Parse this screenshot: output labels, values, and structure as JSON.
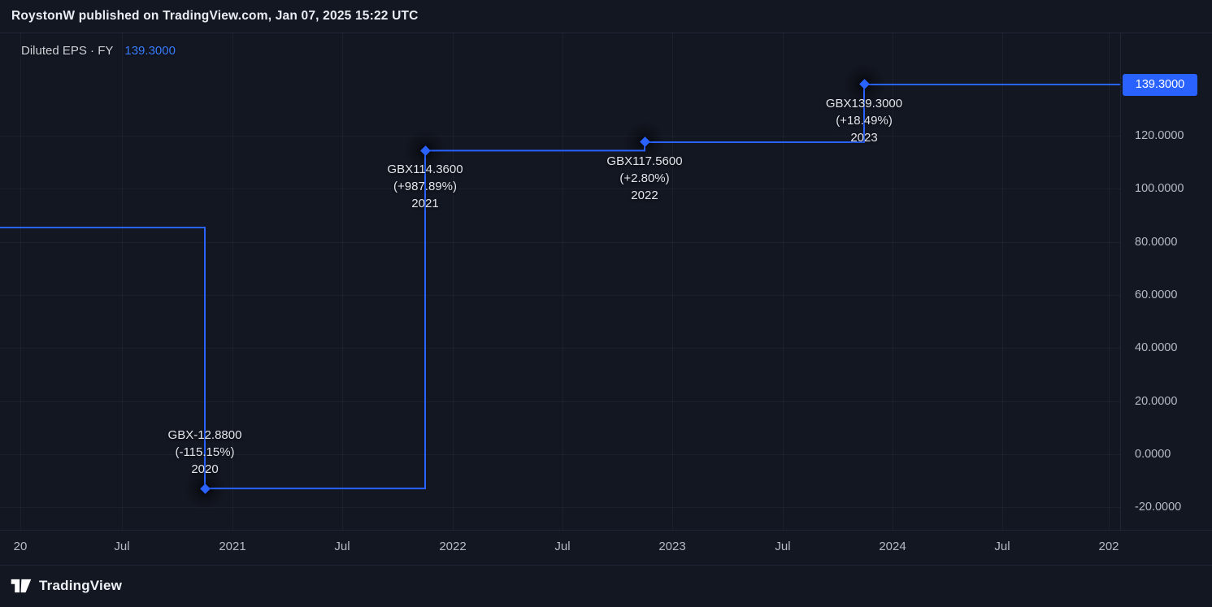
{
  "header": {
    "attribution": "RoystonW published on TradingView.com, Jan 07, 2025 15:22 UTC"
  },
  "legend": {
    "series_title": "Diluted EPS · FY",
    "value": "139.3000"
  },
  "price_label": {
    "value": "139.3000"
  },
  "footer": {
    "brand": "TradingView"
  },
  "colors": {
    "accent": "#2962ff",
    "background": "#131722",
    "axis_text": "#b5bac6",
    "label_text": "#e2e5ec"
  },
  "chart_data": {
    "type": "line",
    "line_style": "step",
    "title": "Diluted EPS · FY",
    "unit": "GBX",
    "legend_position": "top-left",
    "grid": true,
    "line_color": "#2962ff",
    "categories": [
      "2020",
      "2021",
      "2022",
      "2023"
    ],
    "values": [
      -12.88,
      114.36,
      117.56,
      139.3
    ],
    "points": [
      {
        "year": "2020",
        "value": -12.88,
        "label_value": "GBX-12.8800",
        "label_change": "(-115.15%)",
        "label_side": "above"
      },
      {
        "year": "2021",
        "value": 114.36,
        "label_value": "GBX114.3600",
        "label_change": "(+987.89%)",
        "label_side": "below"
      },
      {
        "year": "2022",
        "value": 117.56,
        "label_value": "GBX117.5600",
        "label_change": "(+2.80%)",
        "label_side": "below"
      },
      {
        "year": "2023",
        "value": 139.3,
        "label_value": "GBX139.3000",
        "label_change": "(+18.49%)",
        "label_side": "below"
      }
    ],
    "leading_value_estimate": 85.4,
    "last_value": 139.3,
    "y_axis": {
      "ticks": [
        {
          "label": "120.0000",
          "value": 120
        },
        {
          "label": "100.0000",
          "value": 100
        },
        {
          "label": "80.0000",
          "value": 80
        },
        {
          "label": "60.0000",
          "value": 60
        },
        {
          "label": "40.0000",
          "value": 40
        },
        {
          "label": "20.0000",
          "value": 20
        },
        {
          "label": "0.0000",
          "value": 0
        },
        {
          "label": "-20.0000",
          "value": -20
        }
      ],
      "range_estimate": [
        -33,
        153
      ]
    },
    "x_axis": {
      "ticks": [
        "20",
        "Jul",
        "2021",
        "Jul",
        "2022",
        "Jul",
        "2023",
        "Jul",
        "2024",
        "Jul",
        "202"
      ]
    }
  }
}
